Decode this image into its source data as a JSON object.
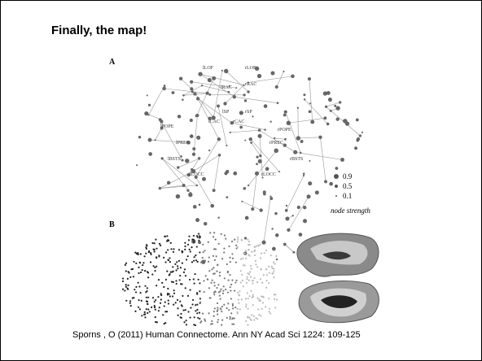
{
  "slide": {
    "title": "Finally, the map!",
    "figure": {
      "panel_a": {
        "label": "A",
        "node_labels": [
          "lLOF",
          "rLOF",
          "lRAC",
          "rRAC",
          "lPOPE",
          "rPOPE",
          "lCAC",
          "rCAC",
          "lPREC",
          "rPREC",
          "lSP",
          "rSP",
          "lBSTS",
          "rBSTS",
          "lLOCC",
          "rLOCC"
        ],
        "legend": {
          "items": [
            "0.9",
            "0.5",
            "0.1"
          ],
          "title": "node strength"
        }
      },
      "panel_b": {
        "label": "B"
      }
    },
    "citation": "Sporns , O (2011)  Human Connectome.  Ann NY Acad Sci 1224: 109-125"
  }
}
